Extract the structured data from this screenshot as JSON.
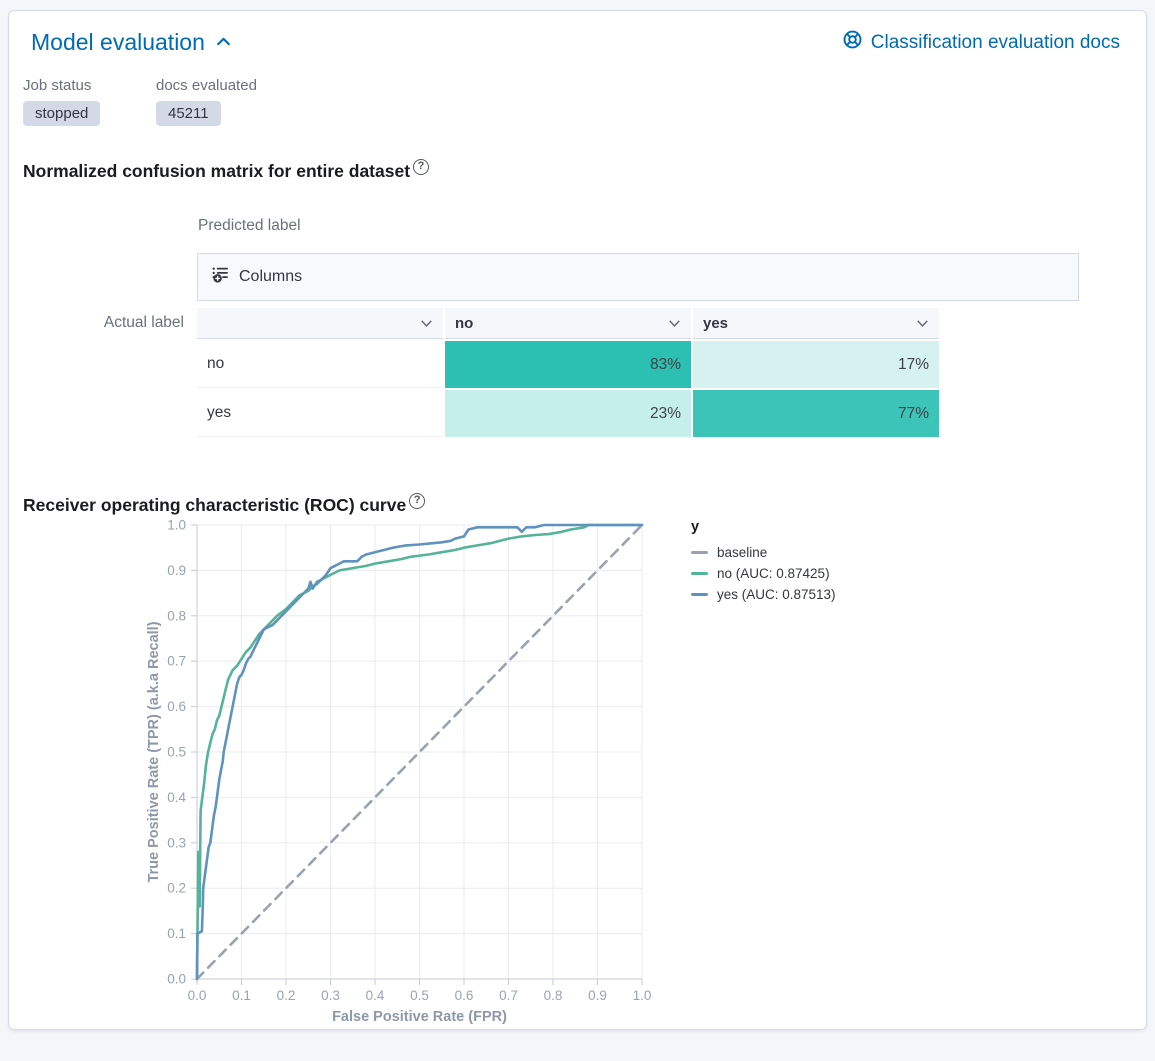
{
  "colors": {
    "accent_blue": "#006BB4",
    "badge_bg": "#D3DAE6",
    "teal_base": "#00B3A4"
  },
  "panel": {
    "title": "Model evaluation",
    "docs_link": "Classification evaluation docs"
  },
  "stats": {
    "job_status_label": "Job status",
    "job_status_value": "stopped",
    "docs_evaluated_label": "docs evaluated",
    "docs_evaluated_value": "45211"
  },
  "confusion": {
    "heading": "Normalized confusion matrix for entire dataset",
    "predicted_label": "Predicted label",
    "actual_label": "Actual label",
    "columns_button": "Columns",
    "columns": [
      "",
      "no",
      "yes"
    ],
    "rows": [
      {
        "label": "no",
        "cells": [
          {
            "text": "83%",
            "color": "#2CC0B3"
          },
          {
            "text": "17%",
            "color": "#D5F2F0"
          }
        ]
      },
      {
        "label": "yes",
        "cells": [
          {
            "text": "23%",
            "color": "#C5EFEA"
          },
          {
            "text": "77%",
            "color": "#3CC4B8"
          }
        ]
      }
    ]
  },
  "roc": {
    "heading": "Receiver operating characteristic (ROC) curve"
  },
  "chart_data": {
    "type": "line",
    "title": "Receiver operating characteristic (ROC) curve",
    "xlabel": "False Positive Rate (FPR)",
    "ylabel": "True Positive Rate (TPR) (a.k.a Recall)",
    "xlim": [
      0,
      1
    ],
    "ylim": [
      0,
      1
    ],
    "xticks": [
      0,
      0.1,
      0.2,
      0.3,
      0.4,
      0.5,
      0.6,
      0.7,
      0.8,
      0.9,
      1.0
    ],
    "yticks": [
      0,
      0.1,
      0.2,
      0.3,
      0.4,
      0.5,
      0.6,
      0.7,
      0.8,
      0.9,
      1.0
    ],
    "grid": true,
    "legend_position": "right",
    "legend_title": "y",
    "series": [
      {
        "name": "baseline",
        "color": "#98A2B3",
        "dash": true,
        "points": [
          [
            0,
            0
          ],
          [
            1,
            1
          ]
        ]
      },
      {
        "name": "no (AUC: 0.87425)",
        "color": "#54B399",
        "dash": false,
        "points": [
          [
            0,
            0
          ],
          [
            0.003,
            0.28
          ],
          [
            0.006,
            0.16
          ],
          [
            0.008,
            0.37
          ],
          [
            0.012,
            0.4
          ],
          [
            0.016,
            0.43
          ],
          [
            0.02,
            0.47
          ],
          [
            0.025,
            0.5
          ],
          [
            0.03,
            0.52
          ],
          [
            0.035,
            0.54
          ],
          [
            0.04,
            0.55
          ],
          [
            0.045,
            0.57
          ],
          [
            0.05,
            0.58
          ],
          [
            0.055,
            0.6
          ],
          [
            0.06,
            0.62
          ],
          [
            0.065,
            0.64
          ],
          [
            0.07,
            0.66
          ],
          [
            0.075,
            0.67
          ],
          [
            0.08,
            0.68
          ],
          [
            0.09,
            0.69
          ],
          [
            0.1,
            0.705
          ],
          [
            0.11,
            0.72
          ],
          [
            0.12,
            0.73
          ],
          [
            0.13,
            0.745
          ],
          [
            0.14,
            0.76
          ],
          [
            0.15,
            0.77
          ],
          [
            0.16,
            0.78
          ],
          [
            0.17,
            0.79
          ],
          [
            0.18,
            0.8
          ],
          [
            0.2,
            0.815
          ],
          [
            0.21,
            0.825
          ],
          [
            0.22,
            0.835
          ],
          [
            0.23,
            0.845
          ],
          [
            0.24,
            0.85
          ],
          [
            0.25,
            0.855
          ],
          [
            0.26,
            0.865
          ],
          [
            0.27,
            0.87
          ],
          [
            0.28,
            0.88
          ],
          [
            0.3,
            0.89
          ],
          [
            0.32,
            0.9
          ],
          [
            0.35,
            0.905
          ],
          [
            0.38,
            0.91
          ],
          [
            0.4,
            0.915
          ],
          [
            0.43,
            0.92
          ],
          [
            0.46,
            0.925
          ],
          [
            0.48,
            0.93
          ],
          [
            0.52,
            0.935
          ],
          [
            0.55,
            0.94
          ],
          [
            0.58,
            0.945
          ],
          [
            0.6,
            0.95
          ],
          [
            0.63,
            0.955
          ],
          [
            0.66,
            0.96
          ],
          [
            0.68,
            0.965
          ],
          [
            0.7,
            0.97
          ],
          [
            0.73,
            0.975
          ],
          [
            0.76,
            0.978
          ],
          [
            0.79,
            0.98
          ],
          [
            0.82,
            0.985
          ],
          [
            0.84,
            0.99
          ],
          [
            0.87,
            0.995
          ],
          [
            0.88,
            1.0
          ],
          [
            1,
            1
          ]
        ]
      },
      {
        "name": "yes (AUC: 0.87513)",
        "color": "#6092C0",
        "dash": false,
        "points": [
          [
            0,
            0
          ],
          [
            0.001,
            0.1
          ],
          [
            0.011,
            0.105
          ],
          [
            0.013,
            0.16
          ],
          [
            0.014,
            0.2
          ],
          [
            0.018,
            0.23
          ],
          [
            0.022,
            0.26
          ],
          [
            0.026,
            0.29
          ],
          [
            0.03,
            0.3
          ],
          [
            0.034,
            0.33
          ],
          [
            0.038,
            0.36
          ],
          [
            0.042,
            0.38
          ],
          [
            0.046,
            0.41
          ],
          [
            0.05,
            0.44
          ],
          [
            0.054,
            0.46
          ],
          [
            0.058,
            0.48
          ],
          [
            0.06,
            0.5
          ],
          [
            0.064,
            0.52
          ],
          [
            0.068,
            0.54
          ],
          [
            0.072,
            0.56
          ],
          [
            0.076,
            0.58
          ],
          [
            0.08,
            0.6
          ],
          [
            0.084,
            0.62
          ],
          [
            0.088,
            0.64
          ],
          [
            0.09,
            0.65
          ],
          [
            0.095,
            0.665
          ],
          [
            0.1,
            0.67
          ],
          [
            0.105,
            0.68
          ],
          [
            0.11,
            0.695
          ],
          [
            0.115,
            0.705
          ],
          [
            0.12,
            0.71
          ],
          [
            0.13,
            0.73
          ],
          [
            0.14,
            0.75
          ],
          [
            0.15,
            0.77
          ],
          [
            0.16,
            0.775
          ],
          [
            0.17,
            0.78
          ],
          [
            0.18,
            0.79
          ],
          [
            0.19,
            0.8
          ],
          [
            0.2,
            0.81
          ],
          [
            0.21,
            0.82
          ],
          [
            0.22,
            0.83
          ],
          [
            0.23,
            0.84
          ],
          [
            0.24,
            0.85
          ],
          [
            0.25,
            0.86
          ],
          [
            0.255,
            0.875
          ],
          [
            0.26,
            0.86
          ],
          [
            0.27,
            0.875
          ],
          [
            0.28,
            0.88
          ],
          [
            0.29,
            0.89
          ],
          [
            0.3,
            0.905
          ],
          [
            0.31,
            0.91
          ],
          [
            0.32,
            0.915
          ],
          [
            0.33,
            0.92
          ],
          [
            0.36,
            0.92
          ],
          [
            0.37,
            0.93
          ],
          [
            0.38,
            0.935
          ],
          [
            0.4,
            0.94
          ],
          [
            0.42,
            0.945
          ],
          [
            0.44,
            0.95
          ],
          [
            0.47,
            0.955
          ],
          [
            0.5,
            0.957
          ],
          [
            0.53,
            0.96
          ],
          [
            0.55,
            0.962
          ],
          [
            0.57,
            0.965
          ],
          [
            0.58,
            0.97
          ],
          [
            0.6,
            0.975
          ],
          [
            0.61,
            0.99
          ],
          [
            0.63,
            0.995
          ],
          [
            0.68,
            0.995
          ],
          [
            0.72,
            0.995
          ],
          [
            0.73,
            0.985
          ],
          [
            0.74,
            0.995
          ],
          [
            0.76,
            0.995
          ],
          [
            0.78,
            1.0
          ],
          [
            1,
            1
          ]
        ]
      }
    ]
  }
}
